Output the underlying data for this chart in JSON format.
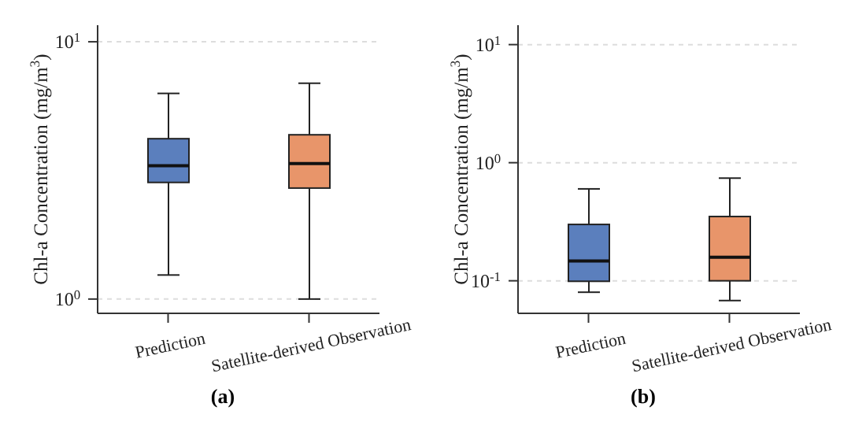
{
  "chart_data": [
    {
      "type": "box",
      "xlabel": "(a)",
      "ylabel": "Chl-a Concentration (mg/m$^{3}$)",
      "categories": [
        "Prediction",
        "Satellite-derived Observation"
      ],
      "colors": [
        "#5b7fbd",
        "#e8956a"
      ],
      "log": "y",
      "grid": "y",
      "ylim": [
        0.88,
        11.6
      ],
      "yticks": [
        {
          "value": 1,
          "label": "10$^{0}$"
        },
        {
          "value": 10,
          "label": "10$^{1}$"
        }
      ],
      "boxes": [
        {
          "low": 1.24,
          "q1": 2.84,
          "median": 3.3,
          "q3": 4.2,
          "high": 6.3
        },
        {
          "low": 1.0,
          "q1": 2.7,
          "median": 3.36,
          "q3": 4.35,
          "high": 6.9
        }
      ]
    },
    {
      "type": "box",
      "xlabel": "(b)",
      "ylabel": "Chl-a Concentration (mg/m$^{3}$)",
      "categories": [
        "Prediction",
        "Satellite-derived Observation"
      ],
      "colors": [
        "#5b7fbd",
        "#e8956a"
      ],
      "log": "y",
      "grid": "y",
      "ylim": [
        0.053,
        14.6
      ],
      "yticks": [
        {
          "value": 0.1,
          "label": "10$^{-1}$"
        },
        {
          "value": 1,
          "label": "10$^{0}$"
        },
        {
          "value": 10,
          "label": "10$^{1}$"
        }
      ],
      "boxes": [
        {
          "low": 0.08,
          "q1": 0.099,
          "median": 0.147,
          "q3": 0.3,
          "high": 0.6
        },
        {
          "low": 0.068,
          "q1": 0.1,
          "median": 0.158,
          "q3": 0.35,
          "high": 0.74
        }
      ]
    }
  ]
}
